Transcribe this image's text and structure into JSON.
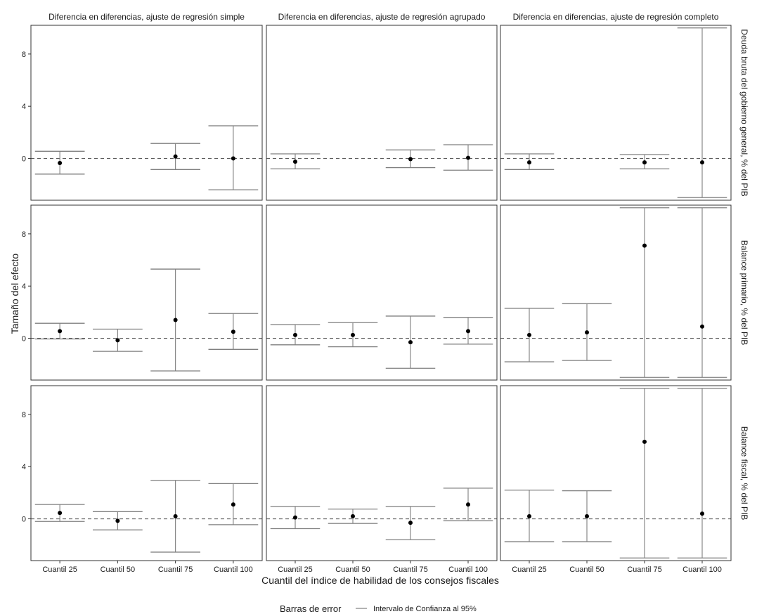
{
  "chart_data": {
    "type": "errorbar-facet",
    "ylabel": "Tamaño del efecto",
    "xlabel": "Cuantil del índice de habilidad de los consejos fiscales",
    "categories": [
      "Cuantil 25",
      "Cuantil 50",
      "Cuantil 75",
      "Cuantil 100"
    ],
    "yticks": [
      0,
      4,
      8
    ],
    "ylim": [
      -3.2,
      10.2
    ],
    "reference_line": 0,
    "columns": [
      "Diferencia en diferencias, ajuste de regresión simple",
      "Diferencia en diferencias, ajuste de regresión agrupado",
      "Diferencia en diferencias, ajuste de regresión completo"
    ],
    "rows": [
      "Deuda bruta del gobierno general, % del PIB",
      "Balance primario, % del PIB",
      "Balance fiscal, % del PIB"
    ],
    "panels": [
      [
        [
          {
            "est": -0.35,
            "lo": -1.2,
            "hi": 0.55
          },
          null,
          {
            "est": 0.15,
            "lo": -0.85,
            "hi": 1.15
          },
          {
            "est": 0.0,
            "lo": -2.4,
            "hi": 2.5
          }
        ],
        [
          {
            "est": -0.25,
            "lo": -0.8,
            "hi": 0.35
          },
          null,
          {
            "est": -0.05,
            "lo": -0.7,
            "hi": 0.65
          },
          {
            "est": 0.05,
            "lo": -0.9,
            "hi": 1.05
          }
        ],
        [
          {
            "est": -0.3,
            "lo": -0.85,
            "hi": 0.35
          },
          null,
          {
            "est": -0.3,
            "lo": -0.8,
            "hi": 0.3
          },
          {
            "est": -0.3,
            "lo": -3.0,
            "hi": 10.0
          }
        ]
      ],
      [
        [
          {
            "est": 0.55,
            "lo": -0.05,
            "hi": 1.15
          },
          {
            "est": -0.15,
            "lo": -1.0,
            "hi": 0.7
          },
          {
            "est": 1.4,
            "lo": -2.5,
            "hi": 5.3
          },
          {
            "est": 0.5,
            "lo": -0.85,
            "hi": 1.9
          }
        ],
        [
          {
            "est": 0.25,
            "lo": -0.5,
            "hi": 1.05
          },
          {
            "est": 0.25,
            "lo": -0.65,
            "hi": 1.2
          },
          {
            "est": -0.3,
            "lo": -2.3,
            "hi": 1.7
          },
          {
            "est": 0.55,
            "lo": -0.45,
            "hi": 1.6
          }
        ],
        [
          {
            "est": 0.25,
            "lo": -1.8,
            "hi": 2.3
          },
          {
            "est": 0.45,
            "lo": -1.7,
            "hi": 2.65
          },
          {
            "est": 7.1,
            "lo": -3.0,
            "hi": 10.0
          },
          {
            "est": 0.9,
            "lo": -3.0,
            "hi": 10.0
          }
        ]
      ],
      [
        [
          {
            "est": 0.45,
            "lo": -0.2,
            "hi": 1.1
          },
          {
            "est": -0.15,
            "lo": -0.85,
            "hi": 0.55
          },
          {
            "est": 0.2,
            "lo": -2.55,
            "hi": 2.95
          },
          {
            "est": 1.1,
            "lo": -0.45,
            "hi": 2.7
          }
        ],
        [
          {
            "est": 0.1,
            "lo": -0.75,
            "hi": 0.95
          },
          {
            "est": 0.2,
            "lo": -0.35,
            "hi": 0.75
          },
          {
            "est": -0.3,
            "lo": -1.6,
            "hi": 0.95
          },
          {
            "est": 1.1,
            "lo": -0.15,
            "hi": 2.35
          }
        ],
        [
          {
            "est": 0.2,
            "lo": -1.75,
            "hi": 2.2
          },
          {
            "est": 0.2,
            "lo": -1.75,
            "hi": 2.15
          },
          {
            "est": 5.9,
            "lo": -3.0,
            "hi": 10.0
          },
          {
            "est": 0.4,
            "lo": -3.0,
            "hi": 10.0
          }
        ]
      ]
    ],
    "legend": {
      "title": "Barras de error",
      "label": "Intervalo de Confianza al 95%",
      "position": "bottom"
    },
    "colors": {
      "errorbar": "#7f7f7f",
      "point": "#000000",
      "reference": "#595959",
      "panel_border": "#333333"
    }
  }
}
